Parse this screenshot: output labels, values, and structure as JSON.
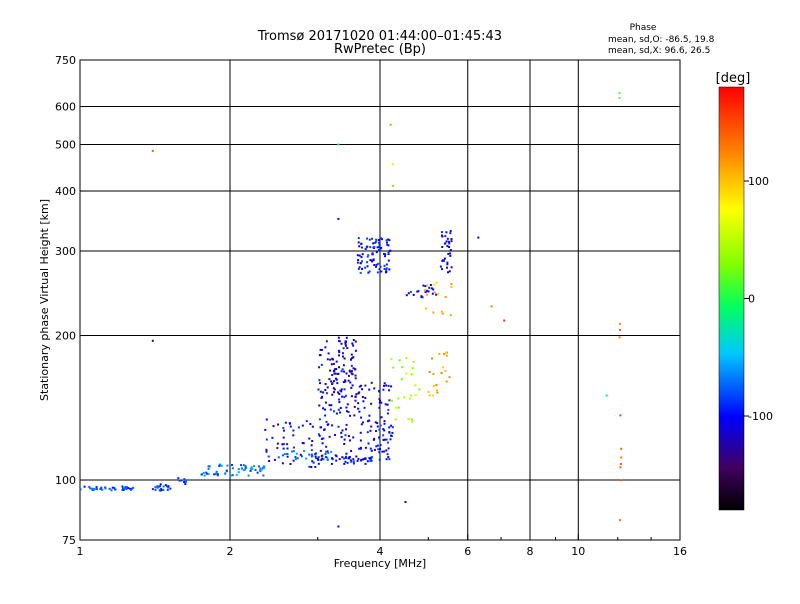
{
  "header": {
    "title": "Tromsø 20171020 01:44:00–01:45:43",
    "subtitle": "RwPretec (Bp)"
  },
  "phase_box": {
    "heading": "Phase",
    "line_o": "mean, sd,O: -86.5, 19.8",
    "line_x": "mean, sd,X: 96.6, 26.5"
  },
  "colorbar": {
    "unit": "[deg]",
    "ticks": [
      "100",
      "0",
      "-100"
    ],
    "tick_values": [
      100,
      0,
      -100
    ],
    "range": [
      -180,
      180
    ]
  },
  "chart_data": {
    "type": "scatter",
    "xlabel": "Frequency [MHz]",
    "ylabel": "Stationary phase Virtual Height [km]",
    "xscale": "log",
    "yscale": "log",
    "xlim": [
      1,
      16
    ],
    "ylim": [
      75,
      750
    ],
    "x_ticks": [
      1,
      2,
      4,
      6,
      8,
      10,
      16
    ],
    "x_tick_labels": [
      "1",
      "2",
      "4",
      "6",
      "8",
      "10",
      "16"
    ],
    "y_ticks": [
      75,
      100,
      200,
      300,
      400,
      500,
      600,
      750
    ],
    "y_tick_labels": [
      "75",
      "100",
      "200",
      "300",
      "400",
      "500",
      "600",
      "750"
    ],
    "x_grid": [
      2,
      4,
      6,
      8,
      10
    ],
    "y_grid": [
      100,
      200,
      300,
      400,
      500,
      600
    ],
    "grid": true,
    "point_groups": [
      {
        "f_from": 1.0,
        "f_to": 1.28,
        "h_from": 95,
        "h_to": 97,
        "n": 40,
        "phase": -80
      },
      {
        "f_from": 1.4,
        "f_to": 1.55,
        "h_from": 95,
        "h_to": 98,
        "n": 20,
        "phase": -90
      },
      {
        "f_from": 1.55,
        "f_to": 1.65,
        "h_from": 98,
        "h_to": 102,
        "n": 8,
        "phase": -80
      },
      {
        "f_from": 1.75,
        "f_to": 2.35,
        "h_from": 102,
        "h_to": 108,
        "n": 60,
        "phase": -70
      },
      {
        "f_from": 2.35,
        "f_to": 3.1,
        "h_from": 106,
        "h_to": 135,
        "n": 60,
        "phase": -100
      },
      {
        "f_from": 2.5,
        "f_to": 3.2,
        "h_from": 110,
        "h_to": 115,
        "n": 30,
        "phase": -75
      },
      {
        "f_from": 3.0,
        "f_to": 3.55,
        "h_from": 110,
        "h_to": 195,
        "n": 120,
        "phase": -105
      },
      {
        "f_from": 3.2,
        "f_to": 3.6,
        "h_from": 150,
        "h_to": 200,
        "n": 50,
        "phase": -115
      },
      {
        "f_from": 3.55,
        "f_to": 4.2,
        "h_from": 115,
        "h_to": 160,
        "n": 70,
        "phase": -110
      },
      {
        "f_from": 3.2,
        "f_to": 4.0,
        "h_from": 108,
        "h_to": 112,
        "n": 40,
        "phase": -100
      },
      {
        "f_from": 3.95,
        "f_to": 4.25,
        "h_from": 110,
        "h_to": 160,
        "n": 35,
        "phase": -95
      },
      {
        "f_from": 3.6,
        "f_to": 4.2,
        "h_from": 270,
        "h_to": 320,
        "n": 90,
        "phase": -95
      },
      {
        "f_from": 4.5,
        "f_to": 5.2,
        "h_from": 240,
        "h_to": 255,
        "n": 20,
        "phase": -100
      },
      {
        "f_from": 5.3,
        "f_to": 5.6,
        "h_from": 270,
        "h_to": 340,
        "n": 35,
        "phase": -110
      },
      {
        "f_from": 4.2,
        "f_to": 4.8,
        "h_from": 130,
        "h_to": 180,
        "n": 25,
        "phase": 40
      },
      {
        "f_from": 5.0,
        "f_to": 5.6,
        "h_from": 150,
        "h_to": 185,
        "n": 20,
        "phase": 110
      },
      {
        "f_from": 4.9,
        "f_to": 5.6,
        "h_from": 220,
        "h_to": 260,
        "n": 15,
        "phase": 100
      },
      {
        "f_from": 12.1,
        "f_to": 12.2,
        "h_from": 80,
        "h_to": 220,
        "n": 10,
        "phase": 140
      }
    ],
    "extra_points": [
      {
        "f": 1.4,
        "h": 485,
        "phase": 140
      },
      {
        "f": 1.4,
        "h": 195,
        "phase": -120
      },
      {
        "f": 3.3,
        "h": 350,
        "phase": -110
      },
      {
        "f": 3.3,
        "h": 80,
        "phase": -110
      },
      {
        "f": 4.2,
        "h": 550,
        "phase": 120
      },
      {
        "f": 4.25,
        "h": 455,
        "phase": 60
      },
      {
        "f": 4.25,
        "h": 410,
        "phase": 110
      },
      {
        "f": 6.3,
        "h": 320,
        "phase": -110
      },
      {
        "f": 6.7,
        "h": 230,
        "phase": 130
      },
      {
        "f": 7.1,
        "h": 215,
        "phase": 160
      },
      {
        "f": 12.1,
        "h": 640,
        "phase": 10
      },
      {
        "f": 12.1,
        "h": 625,
        "phase": 20
      },
      {
        "f": 11.4,
        "h": 150,
        "phase": -20
      },
      {
        "f": 3.3,
        "h": 500,
        "phase": 0
      },
      {
        "f": 4.5,
        "h": 90,
        "phase": -100
      }
    ]
  }
}
